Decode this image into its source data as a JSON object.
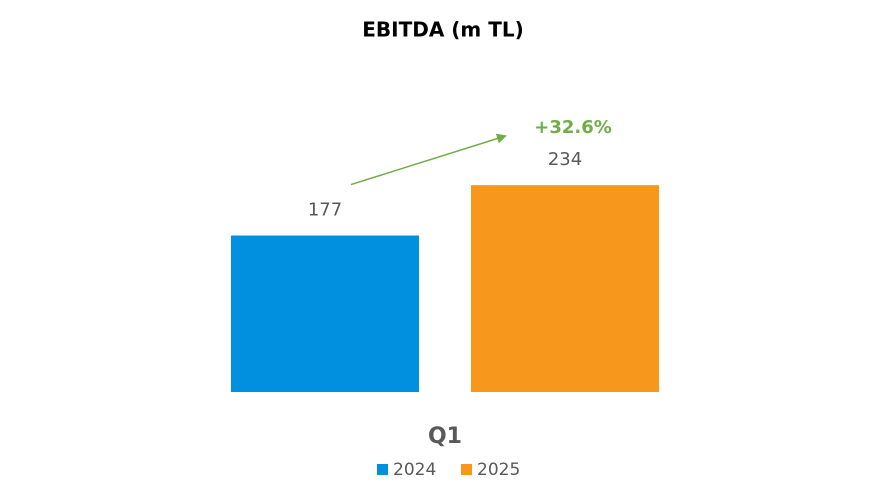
{
  "chart_data": {
    "type": "bar",
    "title": "EBITDA (m TL)",
    "categories": [
      "Q1"
    ],
    "series": [
      {
        "name": "2024",
        "color": "#0090e0",
        "values": [
          177
        ]
      },
      {
        "name": "2025",
        "color": "#f7981d",
        "values": [
          234
        ]
      }
    ],
    "ylim": [
      0,
      250
    ],
    "annotations": [
      {
        "text": "+32.6%",
        "color": "#70ad47"
      }
    ],
    "legend": "bottom"
  }
}
